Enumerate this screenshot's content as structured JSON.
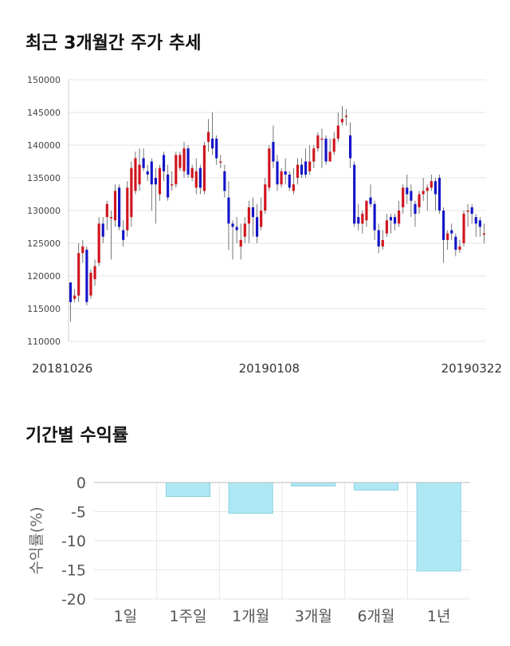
{
  "sections": {
    "price_title": "최근 3개월간 주가 추세",
    "returns_title": "기간별 수익률"
  },
  "colors": {
    "up": "#d0141e",
    "down": "#1414c8",
    "bar_fill": "#aee8f4",
    "bar_edge": "#8ccfe0",
    "grid": "#e6e6e6"
  },
  "chart_data": [
    {
      "type": "candlestick",
      "title": "최근 3개월간 주가 추세",
      "ylim": [
        110000,
        150000
      ],
      "yticks": [
        "150000",
        "145000",
        "140000",
        "135000",
        "130000",
        "125000",
        "120000",
        "115000",
        "110000"
      ],
      "xtick_labels": [
        "20181026",
        "20190108",
        "20190322"
      ],
      "xtick_index": [
        0,
        49,
        98
      ],
      "candles": [
        [
          119000,
          116000,
          119000,
          113000
        ],
        [
          116500,
          117000,
          118000,
          116000
        ],
        [
          117000,
          123500,
          125000,
          116000
        ],
        [
          123500,
          124500,
          125500,
          122000
        ],
        [
          124000,
          116000,
          124500,
          115500
        ],
        [
          117000,
          120500,
          121000,
          116500
        ],
        [
          119500,
          121500,
          122500,
          118500
        ],
        [
          122000,
          128000,
          129000,
          121500
        ],
        [
          128000,
          126000,
          129000,
          125000
        ],
        [
          129000,
          131000,
          131500,
          127000
        ],
        [
          129000,
          129000,
          130000,
          122500
        ],
        [
          128500,
          133000,
          134000,
          127500
        ],
        [
          133500,
          127500,
          134000,
          127000
        ],
        [
          127000,
          125500,
          128500,
          124500
        ],
        [
          127000,
          133500,
          134500,
          126000
        ],
        [
          129000,
          136500,
          137500,
          127500
        ],
        [
          133000,
          138000,
          139000,
          132500
        ],
        [
          134000,
          137000,
          139500,
          133000
        ],
        [
          138000,
          136500,
          139500,
          136000
        ],
        [
          136000,
          135500,
          137000,
          134500
        ],
        [
          137500,
          134000,
          138000,
          130000
        ],
        [
          135000,
          134000,
          136500,
          128000
        ],
        [
          132500,
          136500,
          137000,
          131500
        ],
        [
          138500,
          136000,
          139000,
          134500
        ],
        [
          135500,
          132000,
          137000,
          131500
        ],
        [
          134000,
          134000,
          136000,
          133000
        ],
        [
          134000,
          138500,
          139000,
          133500
        ],
        [
          136500,
          138500,
          139000,
          136000
        ],
        [
          136000,
          139500,
          140500,
          135000
        ],
        [
          139500,
          135500,
          140000,
          135000
        ],
        [
          135000,
          136500,
          137000,
          134500
        ],
        [
          133500,
          136000,
          138000,
          132500
        ],
        [
          136500,
          133500,
          137000,
          132500
        ],
        [
          133000,
          140000,
          140500,
          132500
        ],
        [
          140500,
          142000,
          144000,
          139000
        ],
        [
          141000,
          139500,
          145000,
          138500
        ],
        [
          141000,
          138000,
          141500,
          137000
        ],
        [
          137500,
          137500,
          138500,
          136500
        ],
        [
          136000,
          133000,
          137000,
          132000
        ],
        [
          132000,
          128000,
          134500,
          124000
        ],
        [
          128000,
          127500,
          128500,
          122500
        ],
        [
          127500,
          127000,
          129000,
          125000
        ],
        [
          124500,
          125500,
          128000,
          122500
        ],
        [
          126000,
          128000,
          129000,
          125000
        ],
        [
          128000,
          130500,
          131500,
          125000
        ],
        [
          130500,
          129000,
          132000,
          126000
        ],
        [
          129000,
          126000,
          131000,
          125000
        ],
        [
          127500,
          130000,
          132000,
          127000
        ],
        [
          130000,
          134000,
          135000,
          129500
        ],
        [
          133500,
          139500,
          140000,
          133000
        ],
        [
          140500,
          137500,
          143000,
          136500
        ],
        [
          137500,
          134000,
          138500,
          133000
        ],
        [
          134000,
          136000,
          136500,
          133500
        ],
        [
          136000,
          135500,
          138000,
          134000
        ],
        [
          135500,
          133500,
          136000,
          133000
        ],
        [
          133000,
          134000,
          136500,
          132500
        ],
        [
          135000,
          137000,
          138000,
          134000
        ],
        [
          137000,
          135500,
          138000,
          135000
        ],
        [
          137500,
          135500,
          139500,
          135000
        ],
        [
          136000,
          137500,
          140000,
          135500
        ],
        [
          137500,
          139500,
          140000,
          136500
        ],
        [
          139500,
          141500,
          142000,
          139000
        ],
        [
          141000,
          141000,
          142500,
          136500
        ],
        [
          141000,
          137500,
          141500,
          137000
        ],
        [
          137500,
          139000,
          141000,
          137500
        ],
        [
          139000,
          141000,
          142000,
          138500
        ],
        [
          141000,
          143000,
          145000,
          140500
        ],
        [
          143500,
          144000,
          146000,
          143000
        ],
        [
          144500,
          144500,
          145500,
          143000
        ],
        [
          141500,
          138000,
          143500,
          136500
        ],
        [
          137000,
          128000,
          137500,
          127500
        ],
        [
          129000,
          128000,
          131000,
          127000
        ],
        [
          128000,
          129500,
          130000,
          126500
        ],
        [
          128500,
          131500,
          131500,
          127500
        ],
        [
          132000,
          131000,
          134000,
          130500
        ],
        [
          131000,
          127000,
          131500,
          125500
        ],
        [
          127000,
          124500,
          128000,
          123500
        ],
        [
          124500,
          125500,
          127000,
          124000
        ],
        [
          126500,
          128500,
          129500,
          126000
        ],
        [
          129000,
          128500,
          129500,
          126500
        ],
        [
          129000,
          128000,
          129500,
          127000
        ],
        [
          128000,
          130000,
          131500,
          127500
        ],
        [
          130500,
          133500,
          134000,
          129500
        ],
        [
          133500,
          132500,
          135500,
          131000
        ],
        [
          133000,
          131500,
          134000,
          129000
        ],
        [
          131000,
          129500,
          131500,
          127500
        ],
        [
          130500,
          132500,
          133000,
          129500
        ],
        [
          132500,
          133000,
          135000,
          131500
        ],
        [
          133000,
          133500,
          134000,
          130000
        ],
        [
          133500,
          134500,
          135500,
          133000
        ],
        [
          134500,
          132500,
          135000,
          130000
        ],
        [
          135000,
          130000,
          135500,
          129500
        ],
        [
          130000,
          125500,
          130500,
          122000
        ],
        [
          125500,
          126500,
          127000,
          124000
        ],
        [
          127000,
          126500,
          128000,
          125500
        ],
        [
          126000,
          124000,
          126500,
          123000
        ],
        [
          124000,
          124500,
          125500,
          123500
        ],
        [
          125000,
          129500,
          130000,
          124500
        ],
        [
          130000,
          130000,
          131000,
          127500
        ],
        [
          130500,
          129500,
          131000,
          128000
        ],
        [
          129000,
          128000,
          129500,
          126000
        ],
        [
          128500,
          127500,
          129000,
          126000
        ],
        [
          126500,
          126500,
          128000,
          125000
        ]
      ]
    },
    {
      "type": "bar",
      "title": "기간별 수익률",
      "categories": [
        "1일",
        "1주일",
        "1개월",
        "3개월",
        "6개월",
        "1년"
      ],
      "values": [
        0,
        -2.4,
        -5.3,
        -0.6,
        -1.3,
        -15.2
      ],
      "ylabel": "수익률(%)",
      "ylim": [
        -20,
        0
      ],
      "yticks": [
        0,
        -5,
        -10,
        -15,
        -20
      ]
    }
  ]
}
